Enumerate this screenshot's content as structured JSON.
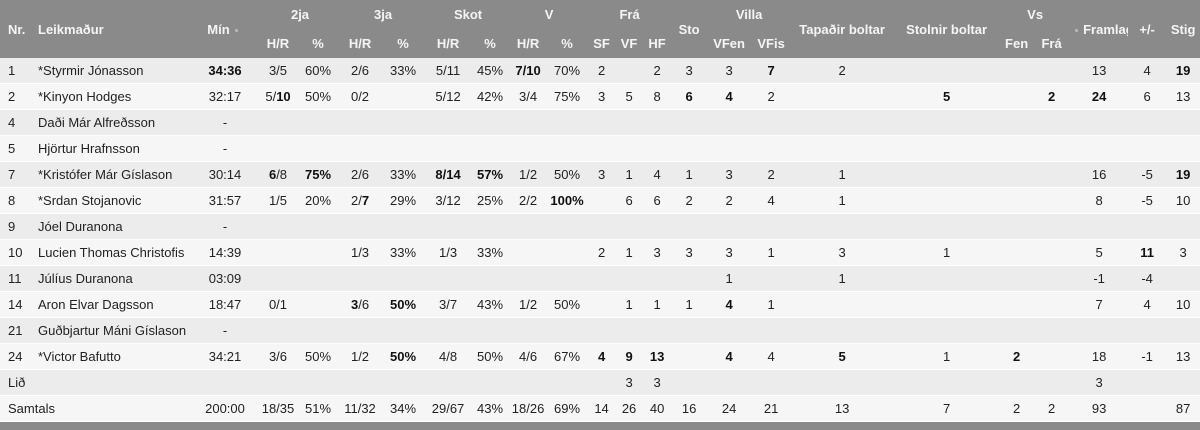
{
  "colors": {
    "header_bg": "#8a8a8a",
    "header_text": "#f5f5f5",
    "row_alt": "#ececec",
    "row_main": "#f6f6f6",
    "body_text": "#222222"
  },
  "table": {
    "header_row1": [
      {
        "label": "Nr.",
        "rowspan": 2,
        "align": "left"
      },
      {
        "label": "Leikmaður",
        "rowspan": 2,
        "align": "left"
      },
      {
        "label": "Mín",
        "rowspan": 2,
        "sort": "after"
      },
      {
        "label": "2ja",
        "colspan": 2
      },
      {
        "label": "3ja",
        "colspan": 2
      },
      {
        "label": "Skot",
        "colspan": 2
      },
      {
        "label": "V",
        "colspan": 2
      },
      {
        "label": "Frá",
        "colspan": 3
      },
      {
        "label": "Sto",
        "rowspan": 2
      },
      {
        "label": "Villa",
        "colspan": 2
      },
      {
        "label": "Tapaðir boltar",
        "rowspan": 2
      },
      {
        "label": "Stolnir boltar",
        "rowspan": 2
      },
      {
        "label": "Vs",
        "colspan": 2
      },
      {
        "label": "Framlag",
        "rowspan": 2,
        "sort": "before"
      },
      {
        "label": "+/-",
        "rowspan": 2
      },
      {
        "label": "Stig",
        "rowspan": 2
      }
    ],
    "header_row2": [
      "H/R",
      "%",
      "H/R",
      "%",
      "H/R",
      "%",
      "H/R",
      "%",
      "SF",
      "VF",
      "HF",
      "VFen",
      "VFis",
      "Fen",
      "Frá"
    ],
    "stat_keys": [
      "min",
      "2ja_hr",
      "2ja_pct",
      "3ja_hr",
      "3ja_pct",
      "skot_hr",
      "skot_pct",
      "v_hr",
      "v_pct",
      "sf",
      "vf",
      "hf",
      "sto",
      "vfen",
      "vfis",
      "tapadir_boltar",
      "stolnir_boltar",
      "vs_fen",
      "vs_fra",
      "framlag",
      "plus_minus",
      "stig"
    ],
    "rows": [
      {
        "type": "player",
        "nr": "1",
        "name": "*Styrmir Jónasson",
        "stats": [
          "**34:36**",
          "3/5",
          "60%",
          "2/6",
          "33%",
          "5/11",
          "45%",
          "**7/10**",
          "70%",
          "2",
          "",
          "2",
          "3",
          "3",
          "**7**",
          "2",
          "",
          "",
          "",
          "13",
          "4",
          "**19**"
        ]
      },
      {
        "type": "player",
        "nr": "2",
        "name": "*Kinyon Hodges",
        "stats": [
          "32:17",
          "5/**10**",
          "50%",
          "0/2",
          "",
          "5/12",
          "42%",
          "3/4",
          "75%",
          "3",
          "5",
          "8",
          "**6**",
          "**4**",
          "2",
          "",
          "**5**",
          "",
          "**2**",
          "**24**",
          "6",
          "13"
        ]
      },
      {
        "type": "player",
        "nr": "4",
        "name": "Daði Már Alfreðsson",
        "stats": [
          "-",
          "",
          "",
          "",
          "",
          "",
          "",
          "",
          "",
          "",
          "",
          "",
          "",
          "",
          "",
          "",
          "",
          "",
          "",
          "",
          "",
          ""
        ]
      },
      {
        "type": "player",
        "nr": "5",
        "name": "Hjörtur Hrafnsson",
        "stats": [
          "-",
          "",
          "",
          "",
          "",
          "",
          "",
          "",
          "",
          "",
          "",
          "",
          "",
          "",
          "",
          "",
          "",
          "",
          "",
          "",
          "",
          ""
        ]
      },
      {
        "type": "player",
        "nr": "7",
        "name": "*Kristófer Már Gíslason",
        "stats": [
          "30:14",
          "**6**/8",
          "**75%**",
          "2/6",
          "33%",
          "**8/14**",
          "**57%**",
          "1/2",
          "50%",
          "3",
          "1",
          "4",
          "1",
          "3",
          "2",
          "1",
          "",
          "",
          "",
          "16",
          "-5",
          "**19**"
        ]
      },
      {
        "type": "player",
        "nr": "8",
        "name": "*Srdan Stojanovic",
        "stats": [
          "31:57",
          "1/5",
          "20%",
          "2/**7**",
          "29%",
          "3/12",
          "25%",
          "2/2",
          "**100%**",
          "",
          "6",
          "6",
          "2",
          "2",
          "4",
          "1",
          "",
          "",
          "",
          "8",
          "-5",
          "10"
        ]
      },
      {
        "type": "player",
        "nr": "9",
        "name": "Jóel Duranona",
        "stats": [
          "-",
          "",
          "",
          "",
          "",
          "",
          "",
          "",
          "",
          "",
          "",
          "",
          "",
          "",
          "",
          "",
          "",
          "",
          "",
          "",
          "",
          ""
        ]
      },
      {
        "type": "player",
        "nr": "10",
        "name": "Lucien Thomas Christofis",
        "stats": [
          "14:39",
          "",
          "",
          "1/3",
          "33%",
          "1/3",
          "33%",
          "",
          "",
          "2",
          "1",
          "3",
          "3",
          "3",
          "1",
          "3",
          "1",
          "",
          "",
          "5",
          "**11**",
          "3"
        ]
      },
      {
        "type": "player",
        "nr": "11",
        "name": "Júlíus Duranona",
        "stats": [
          "03:09",
          "",
          "",
          "",
          "",
          "",
          "",
          "",
          "",
          "",
          "",
          "",
          "",
          "1",
          "",
          "1",
          "",
          "",
          "",
          "-1",
          "-4",
          ""
        ]
      },
      {
        "type": "player",
        "nr": "14",
        "name": "Aron Elvar Dagsson",
        "stats": [
          "18:47",
          "0/1",
          "",
          "**3**/6",
          "**50%**",
          "3/7",
          "43%",
          "1/2",
          "50%",
          "",
          "1",
          "1",
          "1",
          "**4**",
          "1",
          "",
          "",
          "",
          "",
          "7",
          "4",
          "10"
        ]
      },
      {
        "type": "player",
        "nr": "21",
        "name": "Guðbjartur Máni Gíslason",
        "stats": [
          "-",
          "",
          "",
          "",
          "",
          "",
          "",
          "",
          "",
          "",
          "",
          "",
          "",
          "",
          "",
          "",
          "",
          "",
          "",
          "",
          "",
          ""
        ]
      },
      {
        "type": "player",
        "nr": "24",
        "name": "*Victor Bafutto",
        "stats": [
          "34:21",
          "3/6",
          "50%",
          "1/2",
          "**50%**",
          "4/8",
          "50%",
          "4/6",
          "67%",
          "**4**",
          "**9**",
          "**13**",
          "",
          "**4**",
          "4",
          "**5**",
          "1",
          "**2**",
          "",
          "18",
          "-1",
          "13"
        ]
      },
      {
        "type": "team",
        "label": "Lið",
        "stats": [
          "",
          "",
          "",
          "",
          "",
          "",
          "",
          "",
          "",
          "",
          "3",
          "3",
          "",
          "",
          "",
          "",
          "",
          "",
          "",
          "3",
          "",
          ""
        ]
      },
      {
        "type": "total",
        "label": "Samtals",
        "stats": [
          "200:00",
          "18/35",
          "51%",
          "11/32",
          "34%",
          "29/67",
          "43%",
          "18/26",
          "69%",
          "14",
          "26",
          "40",
          "16",
          "24",
          "21",
          "13",
          "7",
          "2",
          "2",
          "93",
          "",
          "87"
        ]
      }
    ]
  }
}
